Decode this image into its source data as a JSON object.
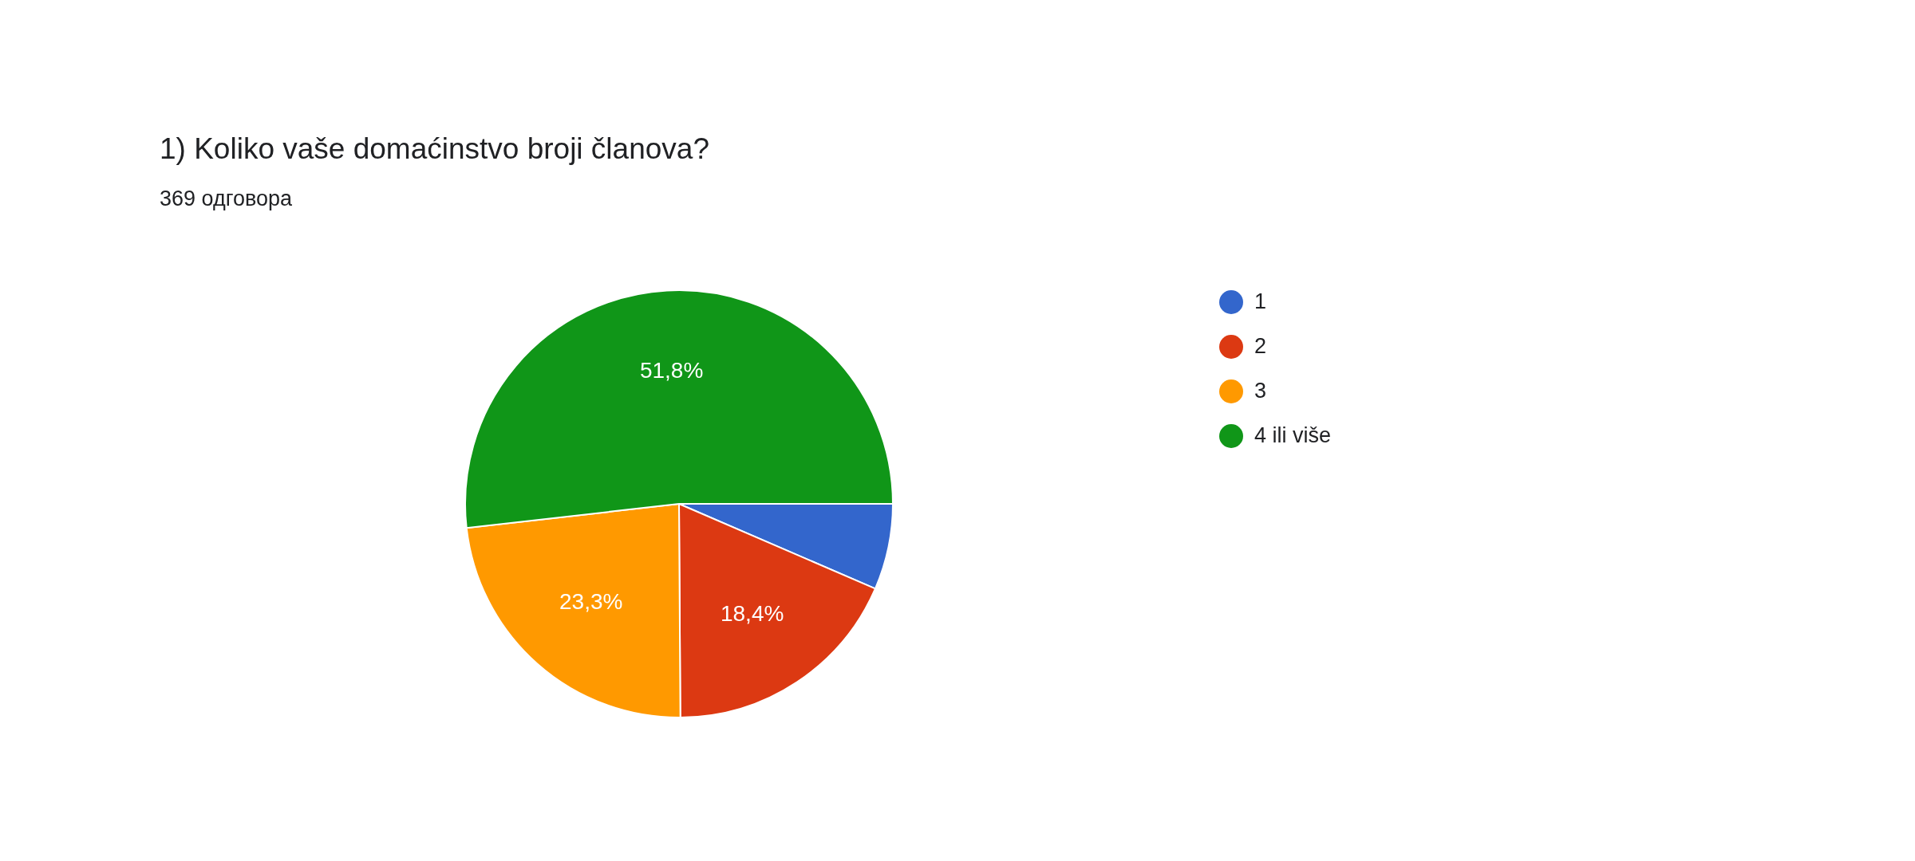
{
  "chart_data": {
    "type": "pie",
    "title": "1) Koliko vaše domaćinstvo broji članova?",
    "subtitle": "369 одговора",
    "categories": [
      "1",
      "2",
      "3",
      "4 ili više"
    ],
    "values": [
      6.5,
      18.4,
      23.3,
      51.8
    ],
    "colors": [
      "#3366cc",
      "#dc3912",
      "#ff9900",
      "#109618"
    ],
    "value_labels": [
      null,
      "18,4%",
      "23,3%",
      "51,8%"
    ],
    "legend": "right"
  }
}
